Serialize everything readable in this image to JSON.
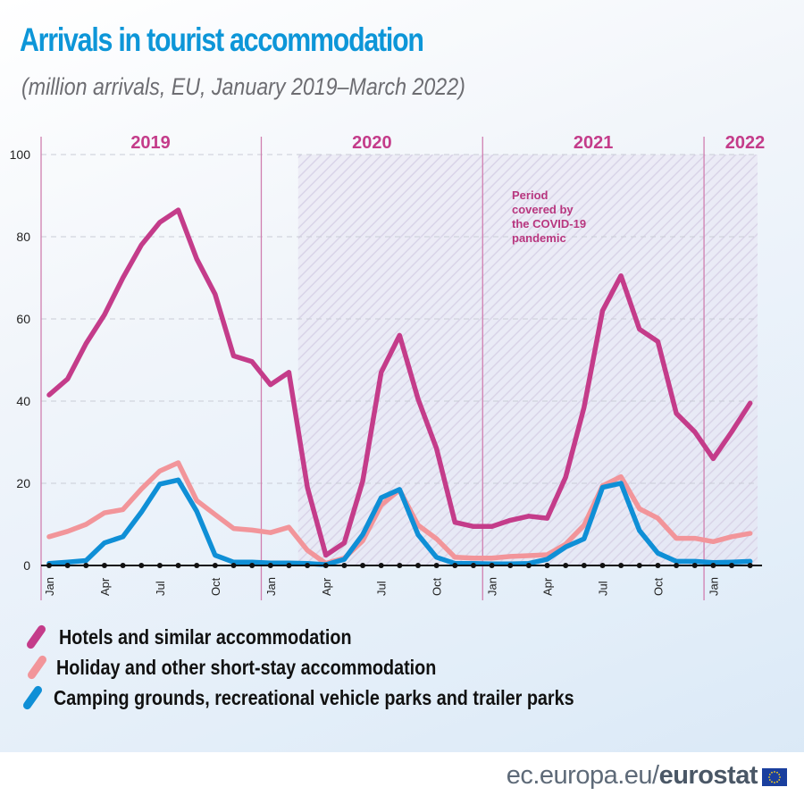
{
  "header": {
    "title": "Arrivals in tourist accommodation",
    "subtitle": "(million arrivals, EU, January 2019–March 2022)"
  },
  "chart_data": {
    "type": "line",
    "title": "Arrivals in tourist accommodation",
    "subtitle": "(million arrivals, EU, January 2019–March 2022)",
    "xlabel": "",
    "ylabel": "million arrivals",
    "ylim": [
      0,
      100
    ],
    "yticks": [
      0,
      20,
      40,
      60,
      80,
      100
    ],
    "grid": true,
    "x_start": "January 2019",
    "x_end": "March 2022",
    "month_labels": [
      "Jan",
      "Apr",
      "Jul",
      "Oct",
      "Jan",
      "Apr",
      "Jul",
      "Oct",
      "Jan",
      "Apr",
      "Jul",
      "Oct",
      "Jan"
    ],
    "year_labels": [
      "2019",
      "2020",
      "2021",
      "2022"
    ],
    "x": [
      "2019-01",
      "2019-02",
      "2019-03",
      "2019-04",
      "2019-05",
      "2019-06",
      "2019-07",
      "2019-08",
      "2019-09",
      "2019-10",
      "2019-11",
      "2019-12",
      "2020-01",
      "2020-02",
      "2020-03",
      "2020-04",
      "2020-05",
      "2020-06",
      "2020-07",
      "2020-08",
      "2020-09",
      "2020-10",
      "2020-11",
      "2020-12",
      "2021-01",
      "2021-02",
      "2021-03",
      "2021-04",
      "2021-05",
      "2021-06",
      "2021-07",
      "2021-08",
      "2021-09",
      "2021-10",
      "2021-11",
      "2021-12",
      "2022-01",
      "2022-02",
      "2022-03"
    ],
    "series": [
      {
        "name": "Hotels and similar accommodation",
        "color": "#c43c8a",
        "values": [
          41.5,
          45.4,
          54,
          61,
          70,
          78,
          83.5,
          86.5,
          74.6,
          66,
          51,
          49.6,
          44,
          47,
          19,
          2.5,
          5.5,
          20.5,
          47,
          56,
          40.5,
          28.5,
          10.5,
          9.5,
          9.5,
          11,
          12,
          11.5,
          21.5,
          38.5,
          62,
          70.5,
          57.5,
          54.5,
          37,
          32.5,
          26,
          32.5,
          39.5
        ]
      },
      {
        "name": "Holiday and other short-stay accommodation",
        "color": "#f2959a",
        "values": [
          7,
          8.3,
          10,
          12.8,
          13.6,
          18.6,
          23,
          25,
          15.8,
          12.4,
          9,
          8.6,
          8,
          9.3,
          3.7,
          0.5,
          1.8,
          6,
          14.7,
          18.4,
          9.8,
          6.5,
          2,
          1.8,
          1.8,
          2.2,
          2.4,
          2.6,
          5.2,
          9.8,
          19.4,
          21.6,
          13.8,
          11.5,
          6.6,
          6.6,
          5.8,
          7,
          7.8
        ]
      },
      {
        "name": "Camping grounds, recreational vehicle parks and trailer parks",
        "color": "#0f8fd6",
        "values": [
          0.5,
          0.8,
          1.2,
          5.5,
          7,
          13,
          19.8,
          20.8,
          13.2,
          2.5,
          0.8,
          0.8,
          0.6,
          0.6,
          0.5,
          0.2,
          1.5,
          7.5,
          16.5,
          18.5,
          7.5,
          2,
          0.5,
          0.5,
          0.4,
          0.4,
          0.5,
          1.5,
          4.5,
          6.5,
          19,
          20,
          8.5,
          3,
          1,
          1,
          0.7,
          0.8,
          1
        ]
      }
    ],
    "annotation": {
      "text": [
        "Period",
        "covered by",
        "the COVID-19",
        "pandemic"
      ],
      "shaded_from": "2020-03",
      "shaded_to": "2022-03"
    },
    "legend_position": "bottom"
  },
  "colors": {
    "title": "#0d96d8",
    "year_label": "#c43c8a",
    "divider": "#d07fb0"
  },
  "footer": {
    "source_prefix": "ec.europa.eu/",
    "source_brand": "eurostat"
  }
}
